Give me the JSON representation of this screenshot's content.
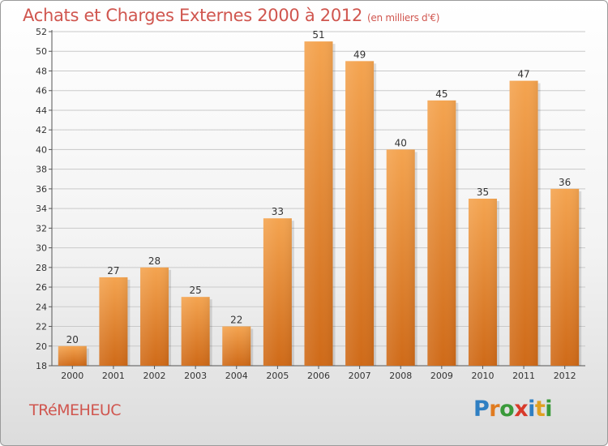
{
  "title": "Achats et Charges Externes 2000 à 2012",
  "subtitle": "(en milliers d'€)",
  "commune": "TRéMEHEUC",
  "logo": {
    "text": "Proxiti",
    "letters": [
      {
        "char": "P",
        "color": "#2f7fc2"
      },
      {
        "char": "r",
        "color": "#e07b20"
      },
      {
        "char": "o",
        "color": "#3a9a3a"
      },
      {
        "char": "x",
        "color": "#d83a2a"
      },
      {
        "char": "i",
        "color": "#2f7fc2"
      },
      {
        "char": "t",
        "color": "#e0a020"
      },
      {
        "char": "i",
        "color": "#3a9a3a"
      }
    ]
  },
  "colors": {
    "bar_top": "#f4a450",
    "bar_bottom": "#cf6a18",
    "title": "#d0564f"
  },
  "chart_data": {
    "type": "bar",
    "title": "Achats et Charges Externes 2000 à 2012",
    "subtitle": "(en milliers d'€)",
    "categories": [
      "2000",
      "2001",
      "2002",
      "2003",
      "2004",
      "2005",
      "2006",
      "2007",
      "2008",
      "2009",
      "2010",
      "2011",
      "2012"
    ],
    "values": [
      20,
      27,
      28,
      25,
      22,
      33,
      51,
      49,
      40,
      45,
      35,
      47,
      36
    ],
    "ylim": [
      18,
      52
    ],
    "yticks": [
      18,
      20,
      22,
      24,
      26,
      28,
      30,
      32,
      34,
      36,
      38,
      40,
      42,
      44,
      46,
      48,
      50,
      52
    ],
    "grid": true,
    "xlabel": "",
    "ylabel": ""
  }
}
